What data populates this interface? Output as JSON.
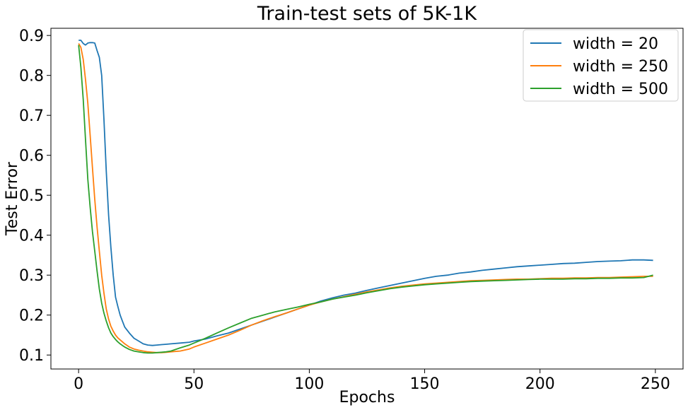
{
  "chart_data": {
    "type": "line",
    "title": "Train-test sets of 5K-1K",
    "xlabel": "Epochs",
    "ylabel": "Test Error",
    "xlim": [
      -12,
      262
    ],
    "ylim": [
      0.065,
      0.918
    ],
    "xticks": [
      0,
      50,
      100,
      150,
      200,
      250
    ],
    "yticks": [
      0.1,
      0.2,
      0.3,
      0.4,
      0.5,
      0.6,
      0.7,
      0.8,
      0.9
    ],
    "ytick_labels": [
      "0.1",
      "0.2",
      "0.3",
      "0.4",
      "0.5",
      "0.6",
      "0.7",
      "0.8",
      "0.9"
    ],
    "grid": false,
    "legend_position": "top-right",
    "series": [
      {
        "name": "width = 20",
        "color": "#1f77b4",
        "points": [
          [
            0,
            0.888
          ],
          [
            1,
            0.888
          ],
          [
            2,
            0.88
          ],
          [
            3,
            0.876
          ],
          [
            4,
            0.881
          ],
          [
            5,
            0.882
          ],
          [
            6,
            0.882
          ],
          [
            7,
            0.881
          ],
          [
            8,
            0.862
          ],
          [
            9,
            0.845
          ],
          [
            10,
            0.8
          ],
          [
            11,
            0.69
          ],
          [
            12,
            0.56
          ],
          [
            13,
            0.45
          ],
          [
            14,
            0.37
          ],
          [
            15,
            0.3
          ],
          [
            16,
            0.245
          ],
          [
            17,
            0.222
          ],
          [
            18,
            0.2
          ],
          [
            19,
            0.185
          ],
          [
            20,
            0.17
          ],
          [
            22,
            0.155
          ],
          [
            24,
            0.142
          ],
          [
            26,
            0.135
          ],
          [
            28,
            0.128
          ],
          [
            30,
            0.125
          ],
          [
            32,
            0.124
          ],
          [
            34,
            0.125
          ],
          [
            36,
            0.126
          ],
          [
            38,
            0.127
          ],
          [
            40,
            0.128
          ],
          [
            44,
            0.13
          ],
          [
            48,
            0.132
          ],
          [
            50,
            0.135
          ],
          [
            55,
            0.14
          ],
          [
            60,
            0.148
          ],
          [
            65,
            0.155
          ],
          [
            70,
            0.165
          ],
          [
            75,
            0.175
          ],
          [
            80,
            0.185
          ],
          [
            85,
            0.195
          ],
          [
            90,
            0.205
          ],
          [
            95,
            0.215
          ],
          [
            100,
            0.225
          ],
          [
            105,
            0.235
          ],
          [
            110,
            0.243
          ],
          [
            115,
            0.25
          ],
          [
            120,
            0.255
          ],
          [
            125,
            0.262
          ],
          [
            130,
            0.268
          ],
          [
            135,
            0.274
          ],
          [
            140,
            0.28
          ],
          [
            145,
            0.286
          ],
          [
            150,
            0.292
          ],
          [
            155,
            0.297
          ],
          [
            160,
            0.3
          ],
          [
            165,
            0.305
          ],
          [
            170,
            0.308
          ],
          [
            175,
            0.312
          ],
          [
            180,
            0.315
          ],
          [
            185,
            0.318
          ],
          [
            190,
            0.321
          ],
          [
            195,
            0.323
          ],
          [
            200,
            0.325
          ],
          [
            205,
            0.327
          ],
          [
            210,
            0.329
          ],
          [
            215,
            0.33
          ],
          [
            220,
            0.332
          ],
          [
            225,
            0.334
          ],
          [
            230,
            0.335
          ],
          [
            235,
            0.336
          ],
          [
            240,
            0.338
          ],
          [
            245,
            0.338
          ],
          [
            249,
            0.337
          ]
        ]
      },
      {
        "name": "width = 250",
        "color": "#ff7f0e",
        "points": [
          [
            0,
            0.88
          ],
          [
            1,
            0.87
          ],
          [
            2,
            0.84
          ],
          [
            3,
            0.79
          ],
          [
            4,
            0.73
          ],
          [
            5,
            0.65
          ],
          [
            6,
            0.57
          ],
          [
            7,
            0.49
          ],
          [
            8,
            0.42
          ],
          [
            9,
            0.36
          ],
          [
            10,
            0.3
          ],
          [
            11,
            0.255
          ],
          [
            12,
            0.215
          ],
          [
            13,
            0.19
          ],
          [
            14,
            0.172
          ],
          [
            15,
            0.16
          ],
          [
            16,
            0.15
          ],
          [
            17,
            0.143
          ],
          [
            18,
            0.138
          ],
          [
            19,
            0.133
          ],
          [
            20,
            0.128
          ],
          [
            22,
            0.12
          ],
          [
            24,
            0.115
          ],
          [
            26,
            0.112
          ],
          [
            28,
            0.11
          ],
          [
            30,
            0.108
          ],
          [
            32,
            0.107
          ],
          [
            34,
            0.106
          ],
          [
            36,
            0.106
          ],
          [
            38,
            0.107
          ],
          [
            40,
            0.108
          ],
          [
            44,
            0.11
          ],
          [
            48,
            0.115
          ],
          [
            50,
            0.12
          ],
          [
            55,
            0.13
          ],
          [
            60,
            0.14
          ],
          [
            65,
            0.15
          ],
          [
            70,
            0.162
          ],
          [
            75,
            0.175
          ],
          [
            80,
            0.186
          ],
          [
            85,
            0.196
          ],
          [
            90,
            0.205
          ],
          [
            95,
            0.215
          ],
          [
            100,
            0.225
          ],
          [
            105,
            0.233
          ],
          [
            110,
            0.24
          ],
          [
            115,
            0.246
          ],
          [
            120,
            0.252
          ],
          [
            125,
            0.258
          ],
          [
            130,
            0.263
          ],
          [
            135,
            0.268
          ],
          [
            140,
            0.272
          ],
          [
            145,
            0.275
          ],
          [
            150,
            0.278
          ],
          [
            155,
            0.28
          ],
          [
            160,
            0.282
          ],
          [
            165,
            0.284
          ],
          [
            170,
            0.286
          ],
          [
            175,
            0.287
          ],
          [
            180,
            0.288
          ],
          [
            185,
            0.289
          ],
          [
            190,
            0.29
          ],
          [
            195,
            0.29
          ],
          [
            200,
            0.291
          ],
          [
            205,
            0.292
          ],
          [
            210,
            0.292
          ],
          [
            215,
            0.293
          ],
          [
            220,
            0.293
          ],
          [
            225,
            0.294
          ],
          [
            230,
            0.294
          ],
          [
            235,
            0.295
          ],
          [
            240,
            0.296
          ],
          [
            245,
            0.297
          ],
          [
            249,
            0.297
          ]
        ]
      },
      {
        "name": "width = 500",
        "color": "#2ca02c",
        "points": [
          [
            0,
            0.876
          ],
          [
            1,
            0.82
          ],
          [
            2,
            0.74
          ],
          [
            3,
            0.64
          ],
          [
            4,
            0.54
          ],
          [
            5,
            0.47
          ],
          [
            6,
            0.41
          ],
          [
            7,
            0.36
          ],
          [
            8,
            0.31
          ],
          [
            9,
            0.265
          ],
          [
            10,
            0.23
          ],
          [
            11,
            0.205
          ],
          [
            12,
            0.185
          ],
          [
            13,
            0.168
          ],
          [
            14,
            0.155
          ],
          [
            15,
            0.146
          ],
          [
            16,
            0.139
          ],
          [
            17,
            0.133
          ],
          [
            18,
            0.128
          ],
          [
            19,
            0.124
          ],
          [
            20,
            0.12
          ],
          [
            22,
            0.114
          ],
          [
            24,
            0.11
          ],
          [
            26,
            0.108
          ],
          [
            28,
            0.106
          ],
          [
            30,
            0.105
          ],
          [
            32,
            0.105
          ],
          [
            34,
            0.106
          ],
          [
            36,
            0.107
          ],
          [
            38,
            0.108
          ],
          [
            40,
            0.11
          ],
          [
            44,
            0.118
          ],
          [
            48,
            0.125
          ],
          [
            50,
            0.13
          ],
          [
            55,
            0.142
          ],
          [
            60,
            0.155
          ],
          [
            65,
            0.168
          ],
          [
            70,
            0.18
          ],
          [
            75,
            0.192
          ],
          [
            80,
            0.2
          ],
          [
            85,
            0.208
          ],
          [
            90,
            0.214
          ],
          [
            95,
            0.22
          ],
          [
            100,
            0.227
          ],
          [
            105,
            0.233
          ],
          [
            110,
            0.24
          ],
          [
            115,
            0.245
          ],
          [
            120,
            0.25
          ],
          [
            125,
            0.256
          ],
          [
            130,
            0.261
          ],
          [
            135,
            0.266
          ],
          [
            140,
            0.27
          ],
          [
            145,
            0.273
          ],
          [
            150,
            0.276
          ],
          [
            155,
            0.278
          ],
          [
            160,
            0.28
          ],
          [
            165,
            0.282
          ],
          [
            170,
            0.284
          ],
          [
            175,
            0.285
          ],
          [
            180,
            0.286
          ],
          [
            185,
            0.287
          ],
          [
            190,
            0.288
          ],
          [
            195,
            0.289
          ],
          [
            200,
            0.29
          ],
          [
            205,
            0.29
          ],
          [
            210,
            0.29
          ],
          [
            215,
            0.291
          ],
          [
            220,
            0.291
          ],
          [
            225,
            0.292
          ],
          [
            230,
            0.292
          ],
          [
            235,
            0.293
          ],
          [
            240,
            0.293
          ],
          [
            245,
            0.294
          ],
          [
            249,
            0.3
          ]
        ]
      }
    ]
  }
}
